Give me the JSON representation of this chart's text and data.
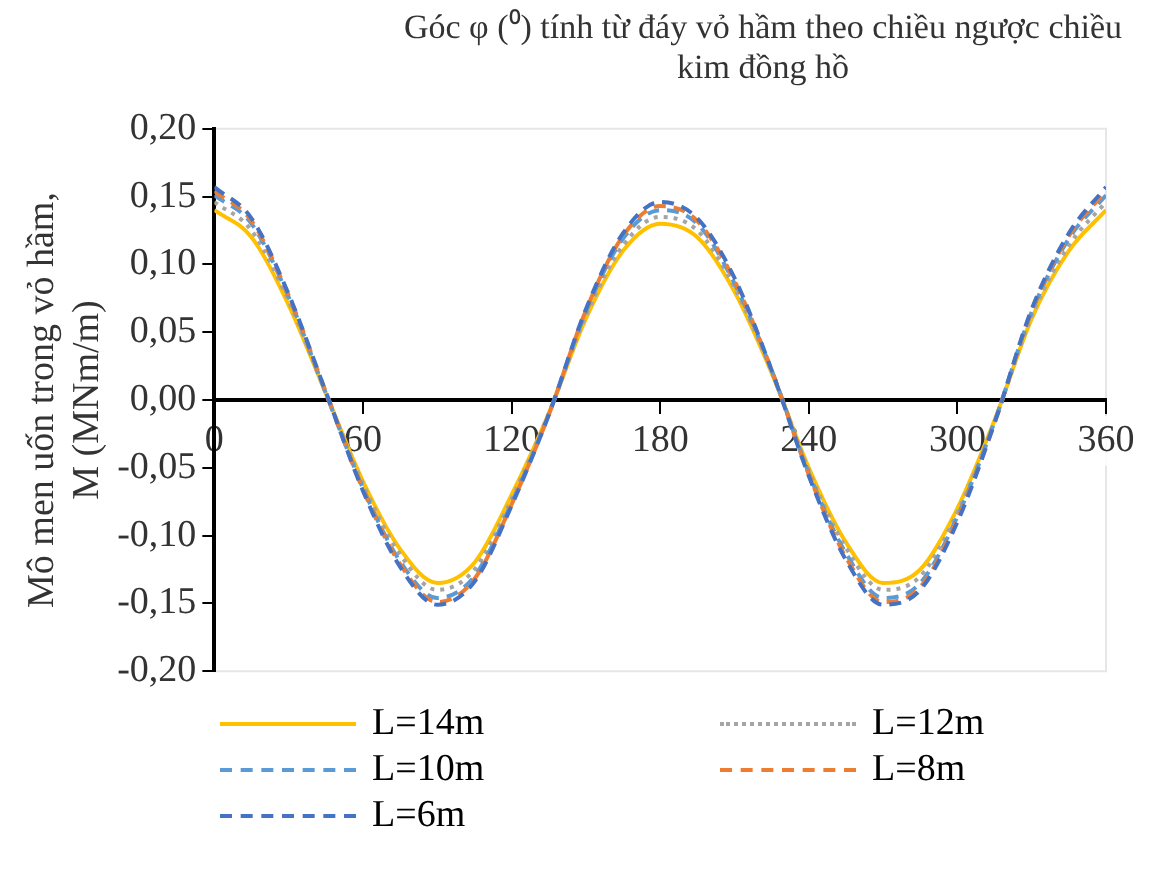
{
  "chart_data": {
    "type": "line",
    "xlabel": "Góc φ (⁰) tính từ đáy vỏ hầm theo chiều ngược chiều kim đồng hồ",
    "ylabel": "Mô men uốn trong vỏ hầm, M (MNm/m)",
    "x": [
      0,
      15,
      30,
      45,
      60,
      75,
      90,
      105,
      120,
      135,
      150,
      165,
      180,
      195,
      210,
      225,
      240,
      255,
      270,
      285,
      300,
      315,
      330,
      345,
      360
    ],
    "series": [
      {
        "name": "L=14m",
        "color": "#ffc000",
        "line_style": "solid",
        "values": [
          0.14,
          0.12,
          0.07,
          0.005,
          -0.06,
          -0.11,
          -0.135,
          -0.12,
          -0.07,
          -0.01,
          0.06,
          0.11,
          0.13,
          0.12,
          0.08,
          0.02,
          -0.05,
          -0.105,
          -0.135,
          -0.125,
          -0.08,
          -0.015,
          0.06,
          0.11,
          0.14
        ]
      },
      {
        "name": "L=12m",
        "color": "#a5a5a5",
        "line_style": "dotted",
        "values": [
          0.146,
          0.125,
          0.073,
          0.005,
          -0.062,
          -0.114,
          -0.14,
          -0.125,
          -0.073,
          -0.01,
          0.062,
          0.114,
          0.135,
          0.125,
          0.083,
          0.021,
          -0.052,
          -0.109,
          -0.14,
          -0.13,
          -0.083,
          -0.016,
          0.062,
          0.114,
          0.146
        ]
      },
      {
        "name": "L=10m",
        "color": "#5b9bd5",
        "line_style": "dashed",
        "values": [
          0.151,
          0.13,
          0.076,
          0.005,
          -0.065,
          -0.119,
          -0.146,
          -0.13,
          -0.076,
          -0.011,
          0.065,
          0.119,
          0.14,
          0.13,
          0.086,
          0.022,
          -0.054,
          -0.113,
          -0.146,
          -0.135,
          -0.086,
          -0.016,
          0.065,
          0.119,
          0.151
        ]
      },
      {
        "name": "L=8m",
        "color": "#ed7d31",
        "line_style": "dashed",
        "values": [
          0.154,
          0.132,
          0.077,
          0.006,
          -0.066,
          -0.121,
          -0.149,
          -0.132,
          -0.077,
          -0.011,
          0.066,
          0.121,
          0.143,
          0.132,
          0.088,
          0.022,
          -0.055,
          -0.116,
          -0.149,
          -0.138,
          -0.088,
          -0.017,
          0.066,
          0.121,
          0.154
        ]
      },
      {
        "name": "L=6m",
        "color": "#4472c4",
        "line_style": "dashed",
        "values": [
          0.157,
          0.134,
          0.078,
          0.006,
          -0.067,
          -0.123,
          -0.151,
          -0.134,
          -0.078,
          -0.011,
          0.067,
          0.123,
          0.146,
          0.134,
          0.09,
          0.022,
          -0.056,
          -0.118,
          -0.151,
          -0.14,
          -0.09,
          -0.017,
          0.067,
          0.123,
          0.157
        ]
      }
    ],
    "xlim": [
      0,
      360
    ],
    "xticks": [
      0,
      60,
      120,
      180,
      240,
      300,
      360
    ],
    "ylim": [
      -0.2,
      0.2
    ],
    "yticks": [
      {
        "value": -0.2,
        "label": "-0,20"
      },
      {
        "value": -0.15,
        "label": "-0,15"
      },
      {
        "value": -0.1,
        "label": "-0,10"
      },
      {
        "value": -0.05,
        "label": "-0,05"
      },
      {
        "value": 0,
        "label": "0,00"
      },
      {
        "value": 0.05,
        "label": "0,05"
      },
      {
        "value": 0.1,
        "label": "0,10"
      },
      {
        "value": 0.15,
        "label": "0,15"
      },
      {
        "value": 0.2,
        "label": "0,20"
      }
    ],
    "grid": false,
    "legend": "bottom",
    "marker": "none"
  }
}
